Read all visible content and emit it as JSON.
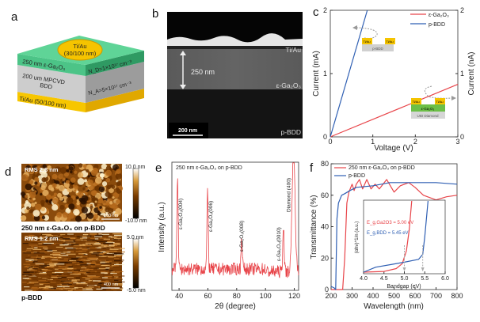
{
  "panels": {
    "a": {
      "label": "a",
      "top_contact": "Ti/Au",
      "top_contact_thickness": "(30/100 nm)",
      "layer1": "250 nm ε-Ga₂O₃",
      "layer1_doping": "N_D=1×10¹⁷ cm⁻³",
      "layer2_line1": "200 um MPCVD",
      "layer2_line2": "BDD",
      "layer2_doping": "N_A=5×10¹⁷ cm⁻³",
      "bottom_contact": "Ti/Au (50/100 nm)",
      "colors": {
        "top": "#f5c400",
        "ga2o3": "#3dbb7a",
        "bdd": "#c8c8c8",
        "bottom": "#f7c600"
      }
    },
    "b": {
      "label": "b",
      "tiau": "Ti/Au",
      "thickness": "250 nm",
      "ga2o3": "ε-Ga₂O₃",
      "substrate": "p-BDD",
      "scale_bar": "200 nm"
    },
    "d": {
      "label": "d",
      "img1_rms": "RMS 2.8 nm",
      "img1_scale": "200 nm",
      "img1_cbar_max": "10.0 nm",
      "img1_cbar_min": "-10.0 nm",
      "img1_caption": "250 nm ε-Ga₂O₃ on p-BDD",
      "img2_rms": "RMS 1.2 nm",
      "img2_scale": "400 nm",
      "img2_cbar_max": "5.0 nm",
      "img2_cbar_min": "-5.0 nm",
      "img2_caption": "p-BDD"
    }
  },
  "chart_data": [
    {
      "panel": "c",
      "type": "line",
      "xlabel": "Voltage (V)",
      "ylabel": "Current (mA)",
      "ylabel_right": "Current (nA)",
      "xlim": [
        0,
        3
      ],
      "ylim": [
        0,
        2
      ],
      "xticks": [
        "0",
        "1",
        "2",
        "3"
      ],
      "yticks": [
        "0",
        "1",
        "2"
      ],
      "series": [
        {
          "name": "ε-Ga₂O₃",
          "axis": "right",
          "color": "#e8454a",
          "x": [
            0,
            3
          ],
          "y": [
            0,
            0.83
          ]
        },
        {
          "name": "p-BDD",
          "axis": "left",
          "color": "#2f5fb3",
          "x": [
            0,
            0.87
          ],
          "y": [
            0,
            2
          ]
        }
      ],
      "legend": "top-right",
      "inset_top": {
        "contact_left": "Ti/Au",
        "contact_right": "Ti/Au",
        "layer": "p-BDD"
      },
      "inset_bottom": {
        "contact_left": "Ti/Au",
        "contact_right": "Ti/Au",
        "layer": "ε-Ga₂O₃",
        "substrate": "UID Diamond"
      }
    },
    {
      "panel": "e",
      "type": "line",
      "title": "250 nm ε-Ga₂O₃ on p-BDD",
      "xlabel": "2θ (degree)",
      "ylabel": "Intensity (a.u.)",
      "xlim": [
        35,
        123
      ],
      "xticks": [
        "40",
        "60",
        "80",
        "100",
        "120"
      ],
      "color": "#e8454a",
      "peaks": [
        {
          "x": 38.9,
          "y": 0.75,
          "label": "ε-Ga₂O₃(004)"
        },
        {
          "x": 59.8,
          "y": 0.6,
          "label": "ε-Ga₂O₃(006)"
        },
        {
          "x": 83.5,
          "y": 0.26,
          "label": "ε-Ga₂O₃(008)"
        },
        {
          "x": 112.5,
          "y": 0.38,
          "label": "ε-Ga₂O₃(0010)"
        },
        {
          "x": 119.5,
          "y": 1.05,
          "label": "Diamond (400)"
        }
      ]
    },
    {
      "panel": "f",
      "type": "line",
      "xlabel": "Wavelength (nm)",
      "ylabel": "Transmittance (%)",
      "xlim": [
        200,
        800
      ],
      "ylim": [
        0,
        80
      ],
      "xticks": [
        "200",
        "300",
        "400",
        "500",
        "600",
        "700",
        "800"
      ],
      "yticks": [
        "0",
        "20",
        "40",
        "60",
        "80"
      ],
      "legend": "top",
      "series": [
        {
          "name": "250 nm ε-Ga₂O₃ on p-BDD",
          "color": "#e8454a",
          "x": [
            200,
            240,
            255,
            265,
            275,
            285,
            300,
            310,
            320,
            335,
            350,
            370,
            390,
            410,
            430,
            465,
            500,
            530,
            570,
            600,
            640,
            700,
            750,
            800
          ],
          "y": [
            0,
            0,
            0,
            20,
            55,
            62,
            67,
            63,
            67,
            70,
            64,
            70,
            64,
            67,
            64,
            70,
            62,
            66,
            68,
            65,
            60,
            57,
            59,
            60
          ]
        },
        {
          "name": "p-BDD",
          "color": "#2f5fb3",
          "x": [
            200,
            215,
            222,
            228,
            235,
            250,
            265,
            290,
            320,
            400,
            480,
            600,
            700,
            800
          ],
          "y": [
            2,
            1,
            0,
            45,
            55,
            60,
            61,
            63,
            65,
            66,
            68,
            68,
            68,
            67
          ]
        }
      ],
      "inset": {
        "xlabel": "Bandgap (eV)",
        "ylabel": "(αhν)^1/n (a.u.)",
        "xlim": [
          4.0,
          6.0
        ],
        "xticks": [
          "4.0",
          "4.5",
          "5.0",
          "5.5",
          "6.0"
        ],
        "annotation_ga2o3": "E_g,Ga2O3 = 5.00 eV",
        "annotation_bdd": "E_g,BDD = 5.45 eV",
        "series": [
          {
            "color": "#e8454a",
            "x": [
              4.0,
              4.5,
              4.8,
              4.95,
              5.05,
              5.12,
              5.18
            ],
            "y": [
              0,
              0.01,
              0.05,
              0.12,
              0.3,
              0.6,
              1.0
            ]
          },
          {
            "color": "#2f5fb3",
            "x": [
              4.0,
              4.3,
              4.7,
              5.0,
              5.35,
              5.45,
              5.5,
              5.58
            ],
            "y": [
              0,
              0.07,
              0.11,
              0.14,
              0.18,
              0.25,
              0.5,
              1.0
            ]
          }
        ]
      }
    }
  ],
  "panel_labels": {
    "c": "c",
    "e": "e",
    "f": "f"
  }
}
